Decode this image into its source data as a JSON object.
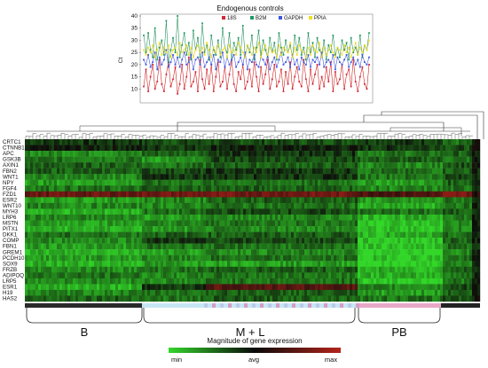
{
  "chart_data": [
    {
      "type": "line",
      "title": "Endogenous controls",
      "ylabel": "Ct",
      "xlabel": "",
      "ylim": [
        5,
        40
      ],
      "yticks": [
        10,
        15,
        20,
        25,
        30,
        35,
        40
      ],
      "grid": false,
      "legend_position": "top",
      "series": [
        {
          "name": "18S",
          "color": "#cc1111",
          "marker_color": "#d4263a",
          "values": [
            11,
            18,
            9,
            15,
            20,
            10,
            13,
            22,
            12,
            9,
            16,
            21,
            11,
            14,
            19,
            8,
            12,
            20,
            10,
            15,
            23,
            11,
            13,
            17,
            9,
            22,
            14,
            10,
            18,
            12,
            20,
            9,
            15,
            21,
            11,
            13,
            19,
            10,
            16,
            22,
            12,
            9,
            17,
            14,
            20,
            10,
            13,
            18,
            11,
            21,
            15,
            9,
            19,
            12,
            16,
            22,
            10,
            14,
            20,
            11,
            13,
            18,
            9,
            17,
            12,
            21,
            10,
            15,
            19,
            13,
            11,
            22,
            14,
            9,
            18,
            12,
            16,
            20,
            10,
            15,
            11,
            19,
            13,
            21,
            9,
            17,
            12,
            14,
            20,
            10,
            16,
            18,
            11,
            22,
            13,
            9,
            15,
            19,
            12,
            10,
            20
          ]
        },
        {
          "name": "B2M",
          "color": "#1b8b57",
          "marker_color": "#1f9b5f",
          "values": [
            32,
            25,
            33,
            26,
            23,
            35,
            22,
            27,
            30,
            24,
            38,
            21,
            26,
            31,
            25,
            40,
            23,
            28,
            33,
            24,
            29,
            22,
            34,
            26,
            31,
            23,
            37,
            25,
            28,
            22,
            32,
            26,
            24,
            30,
            23,
            35,
            27,
            25,
            33,
            22,
            29,
            26,
            31,
            24,
            36,
            23,
            28,
            25,
            32,
            22,
            27,
            34,
            24,
            30,
            26,
            23,
            31,
            25,
            29,
            22,
            33,
            27,
            24,
            30,
            25,
            28,
            23,
            32,
            26,
            31,
            24,
            27,
            22,
            33,
            25,
            29,
            23,
            31,
            26,
            24,
            30,
            22,
            28,
            25,
            32,
            24,
            27,
            23,
            30,
            26,
            29,
            22,
            31,
            25,
            27,
            24,
            32,
            23,
            28,
            26,
            33
          ]
        },
        {
          "name": "GAPDH",
          "color": "#3a4fd6",
          "marker_color": "#3d55e0",
          "values": [
            22,
            20,
            24,
            19,
            21,
            25,
            18,
            23,
            20,
            22,
            26,
            19,
            21,
            24,
            20,
            23,
            19,
            22,
            25,
            20,
            21,
            24,
            18,
            22,
            23,
            20,
            25,
            19,
            21,
            23,
            20,
            24,
            18,
            22,
            21,
            25,
            19,
            23,
            20,
            22,
            24,
            19,
            21,
            23,
            20,
            25,
            18,
            22,
            21,
            24,
            20,
            19,
            23,
            22,
            20,
            24,
            18,
            21,
            23,
            19,
            22,
            25,
            20,
            21,
            23,
            19,
            24,
            20,
            22,
            18,
            23,
            21,
            20,
            24,
            19,
            22,
            21,
            23,
            20,
            25,
            19,
            21,
            22,
            20,
            24,
            18,
            23,
            21,
            20,
            22,
            24,
            19,
            21,
            23,
            20,
            22,
            19,
            24,
            21,
            20,
            23
          ]
        },
        {
          "name": "PPIA",
          "color": "#d8c81a",
          "marker_color": "#f0e01c",
          "values": [
            26,
            24,
            27,
            25,
            28,
            23,
            26,
            29,
            24,
            27,
            25,
            28,
            23,
            26,
            27,
            24,
            29,
            25,
            26,
            28,
            24,
            27,
            23,
            26,
            28,
            25,
            27,
            24,
            29,
            26,
            23,
            27,
            25,
            28,
            24,
            26,
            27,
            23,
            28,
            25,
            26,
            24,
            29,
            27,
            25,
            23,
            28,
            26,
            24,
            27,
            25,
            29,
            23,
            26,
            28,
            24,
            27,
            25,
            26,
            23,
            28,
            24,
            27,
            26,
            25,
            29,
            23,
            27,
            24,
            28,
            26,
            25,
            23,
            27,
            24,
            28,
            26,
            25,
            29,
            23,
            27,
            24,
            26,
            28,
            25,
            23,
            27,
            26,
            24,
            28,
            25,
            27,
            23,
            26,
            29,
            24,
            27,
            25,
            28,
            26,
            30
          ]
        }
      ]
    },
    {
      "type": "heatmap",
      "rows": [
        "CRTC1",
        "CTNNB1",
        "APC",
        "GSK3B",
        "AXIN1",
        "FBN2",
        "WNT1",
        "NPY",
        "FGF4",
        "FZD1",
        "ESR2",
        "WNT10",
        "MYH3",
        "LRP6",
        "MSTN",
        "PITX1",
        "DKK1",
        "COMP",
        "FBN1",
        "GREM1",
        "PCDH10",
        "SOX9",
        "FRZB",
        "ADIPOQ",
        "LRP5",
        "ESR1",
        "H19",
        "HAS2"
      ],
      "groups": [
        "B",
        "M + L",
        "PB"
      ],
      "row_profiles": [
        [
          -0.2,
          -0.3,
          -0.3,
          -0.2,
          -0.5
        ],
        [
          -0.1,
          -0.2,
          -0.1,
          -0.2,
          -0.3
        ],
        [
          -0.6,
          -0.4,
          -0.2,
          -0.5,
          -0.4
        ],
        [
          -0.5,
          -0.7,
          -0.3,
          -0.4,
          -0.5
        ],
        [
          -0.4,
          -0.5,
          -0.4,
          -0.6,
          -0.3
        ],
        [
          -0.4,
          -0.3,
          -0.2,
          -0.5,
          -0.4
        ],
        [
          -0.6,
          -0.2,
          -0.2,
          -0.5,
          -0.3
        ],
        [
          -0.7,
          -0.5,
          -0.5,
          -0.7,
          -0.4
        ],
        [
          -0.5,
          -0.4,
          -0.4,
          -0.6,
          -0.5
        ],
        [
          0.55,
          0.6,
          0.6,
          0.4,
          0.65
        ],
        [
          -0.7,
          -0.6,
          -0.4,
          -0.7,
          -0.5
        ],
        [
          -0.6,
          -0.6,
          -0.5,
          -0.8,
          -0.5
        ],
        [
          -0.8,
          -0.5,
          -0.3,
          -0.5,
          -0.4
        ],
        [
          -0.6,
          -0.7,
          -0.6,
          -0.8,
          -0.5
        ],
        [
          -0.7,
          -0.6,
          -0.5,
          -0.9,
          -0.6
        ],
        [
          -0.8,
          -0.7,
          -0.6,
          -0.9,
          -0.6
        ],
        [
          -0.5,
          -0.4,
          -0.4,
          -0.8,
          -0.5
        ],
        [
          -0.6,
          -0.2,
          -0.3,
          -0.9,
          -0.4
        ],
        [
          -0.7,
          -0.5,
          -0.5,
          -0.9,
          -0.5
        ],
        [
          -0.8,
          -0.7,
          -0.6,
          -1.0,
          -0.6
        ],
        [
          -0.7,
          -0.6,
          -0.5,
          -0.9,
          -0.5
        ],
        [
          -0.8,
          -0.7,
          -0.7,
          -1.0,
          -0.6
        ],
        [
          -0.6,
          -0.5,
          -0.4,
          -0.8,
          -0.4
        ],
        [
          -0.5,
          -0.6,
          -0.5,
          -0.8,
          -0.5
        ],
        [
          -0.6,
          -0.6,
          -0.5,
          -0.9,
          -0.5
        ],
        [
          -0.8,
          -0.2,
          0.45,
          -0.6,
          -0.3
        ],
        [
          -0.6,
          -0.5,
          -0.4,
          -0.7,
          -0.4
        ],
        [
          -0.4,
          -0.5,
          -0.4,
          -0.5,
          -0.3
        ]
      ],
      "color_scale": {
        "title": "Magnitude of gene expression",
        "min_label": "min",
        "mid_label": "avg",
        "max_label": "max",
        "min_color": "#33d62b",
        "mid_color": "#0a0a0a",
        "max_color": "#b3241b"
      }
    }
  ]
}
